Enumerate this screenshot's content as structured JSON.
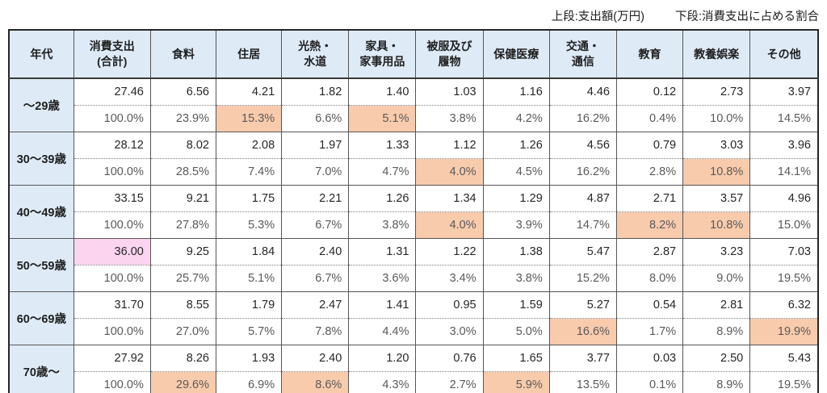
{
  "note": {
    "upper": "上段:支出額(万円)",
    "lower": "下段:消費支出に占める割合"
  },
  "colors": {
    "header_bg": "#deebf7",
    "highlight_orange": "#f8cbad",
    "highlight_pink": "#fbd4f0",
    "amount_text": "#262626",
    "percent_text": "#595959"
  },
  "chart_data": {
    "type": "table",
    "title": "年代別 消費支出と内訳",
    "legend_note_upper": "上段:支出額(万円)",
    "legend_note_lower": "下段:消費支出に占める割合",
    "columns": [
      "年代",
      "消費支出(合計)",
      "食料",
      "住居",
      "光熱・水道",
      "家具・家事用品",
      "被服及び履物",
      "保健医療",
      "交通・通信",
      "教育",
      "教養娯楽",
      "その他"
    ],
    "column_header_lines": [
      [
        "年代"
      ],
      [
        "消費支出",
        "(合計)"
      ],
      [
        "食料"
      ],
      [
        "住居"
      ],
      [
        "光熱・",
        "水道"
      ],
      [
        "家具・",
        "家事用品"
      ],
      [
        "被服及び",
        "履物"
      ],
      [
        "保健医療"
      ],
      [
        "交通・",
        "通信"
      ],
      [
        "教育"
      ],
      [
        "教養娯楽"
      ],
      [
        "その他"
      ]
    ],
    "rows": [
      {
        "label": "〜29歳",
        "amounts": [
          "27.46",
          "6.56",
          "4.21",
          "1.82",
          "1.40",
          "1.03",
          "1.16",
          "4.46",
          "0.12",
          "2.73",
          "3.97"
        ],
        "percents": [
          "100.0%",
          "23.9%",
          "15.3%",
          "6.6%",
          "5.1%",
          "3.8%",
          "4.2%",
          "16.2%",
          "0.4%",
          "10.0%",
          "14.5%"
        ],
        "amount_highlight_cols": [],
        "percent_highlight_cols": [
          2,
          4
        ]
      },
      {
        "label": "30〜39歳",
        "amounts": [
          "28.12",
          "8.02",
          "2.08",
          "1.97",
          "1.33",
          "1.12",
          "1.26",
          "4.56",
          "0.79",
          "3.03",
          "3.96"
        ],
        "percents": [
          "100.0%",
          "28.5%",
          "7.4%",
          "7.0%",
          "4.7%",
          "4.0%",
          "4.5%",
          "16.2%",
          "2.8%",
          "10.8%",
          "14.1%"
        ],
        "amount_highlight_cols": [],
        "percent_highlight_cols": [
          5,
          9
        ]
      },
      {
        "label": "40〜49歳",
        "amounts": [
          "33.15",
          "9.21",
          "1.75",
          "2.21",
          "1.26",
          "1.34",
          "1.29",
          "4.87",
          "2.71",
          "3.57",
          "4.96"
        ],
        "percents": [
          "100.0%",
          "27.8%",
          "5.3%",
          "6.7%",
          "3.8%",
          "4.0%",
          "3.9%",
          "14.7%",
          "8.2%",
          "10.8%",
          "15.0%"
        ],
        "amount_highlight_cols": [],
        "percent_highlight_cols": [
          5,
          8,
          9
        ]
      },
      {
        "label": "50〜59歳",
        "amounts": [
          "36.00",
          "9.25",
          "1.84",
          "2.40",
          "1.31",
          "1.22",
          "1.38",
          "5.47",
          "2.87",
          "3.23",
          "7.03"
        ],
        "percents": [
          "100.0%",
          "25.7%",
          "5.1%",
          "6.7%",
          "3.6%",
          "3.4%",
          "3.8%",
          "15.2%",
          "8.0%",
          "9.0%",
          "19.5%"
        ],
        "amount_highlight_cols": [
          0
        ],
        "percent_highlight_cols": []
      },
      {
        "label": "60〜69歳",
        "amounts": [
          "31.70",
          "8.55",
          "1.79",
          "2.47",
          "1.41",
          "0.95",
          "1.59",
          "5.27",
          "0.54",
          "2.81",
          "6.32"
        ],
        "percents": [
          "100.0%",
          "27.0%",
          "5.7%",
          "7.8%",
          "4.4%",
          "3.0%",
          "5.0%",
          "16.6%",
          "1.7%",
          "8.9%",
          "19.9%"
        ],
        "amount_highlight_cols": [],
        "percent_highlight_cols": [
          7,
          10
        ]
      },
      {
        "label": "70歳〜",
        "amounts": [
          "27.92",
          "8.26",
          "1.93",
          "2.40",
          "1.20",
          "0.76",
          "1.65",
          "3.77",
          "0.03",
          "2.50",
          "5.43"
        ],
        "percents": [
          "100.0%",
          "29.6%",
          "6.9%",
          "8.6%",
          "4.3%",
          "2.7%",
          "5.9%",
          "13.5%",
          "0.1%",
          "8.9%",
          "19.5%"
        ],
        "amount_highlight_cols": [],
        "percent_highlight_cols": [
          1,
          3,
          6
        ]
      }
    ]
  }
}
